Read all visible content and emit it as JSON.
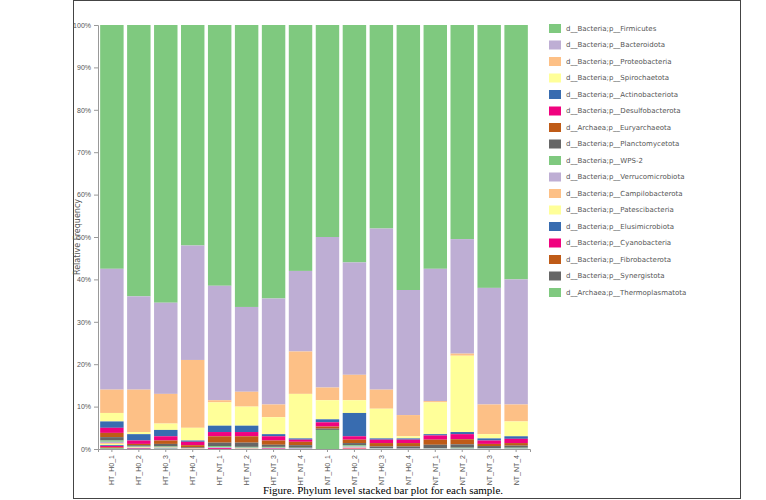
{
  "chart_data": {
    "type": "bar",
    "stacked": true,
    "legend": "right",
    "grid": false,
    "title": "Figure. Phylum level stacked bar plot for each sample.",
    "y_label": "Relative Frequency",
    "categories": [
      "HT_H0_1",
      "HT_H0_2",
      "HT_H0_3",
      "HT_H0_4",
      "HT_NT_1",
      "HT_NT_2",
      "HT_NT_3",
      "HT_NT_4",
      "NT_H0_1",
      "NT_H0_2",
      "NT_H0_3",
      "NT_H0_4",
      "NT_NT_1",
      "NT_NT_2",
      "NT_NT_3",
      "NT_NT_4"
    ],
    "ylim": [
      0,
      100
    ],
    "yticks": [
      {
        "value": 0,
        "label": "0%"
      },
      {
        "value": 10,
        "label": "10%"
      },
      {
        "value": 20,
        "label": "20%"
      },
      {
        "value": 30,
        "label": "30%"
      },
      {
        "value": 40,
        "label": "40%"
      },
      {
        "value": 50,
        "label": "50%"
      },
      {
        "value": 60,
        "label": "60%"
      },
      {
        "value": 70,
        "label": "70%"
      },
      {
        "value": 80,
        "label": "80%"
      },
      {
        "value": 90,
        "label": "90%"
      },
      {
        "value": 100,
        "label": "100%"
      }
    ],
    "series": [
      {
        "name": "d__Bacteria;p__Firmicutes",
        "color": "#7fc97f",
        "values": [
          57.5,
          64,
          65.5,
          52,
          61.5,
          66.5,
          64.5,
          58,
          50,
          56,
          48,
          62.5,
          57.5,
          50.5,
          62,
          60
        ]
      },
      {
        "name": "d__Bacteria;p__Bacteroidota",
        "color": "#beaed4",
        "values": [
          28.5,
          22,
          21.5,
          27,
          27,
          20,
          25,
          19,
          35.5,
          26.5,
          38,
          29.5,
          31.2,
          27,
          27.5,
          29.5
        ]
      },
      {
        "name": "d__Bacteria;p__Proteobacteria",
        "color": "#fdc086",
        "values": [
          5.5,
          10,
          7,
          16,
          0.5,
          3.5,
          3,
          10,
          3,
          6,
          4.5,
          5,
          0.3,
          0.5,
          7,
          4
        ]
      },
      {
        "name": "d__Bacteria;p__Spirochaetota",
        "color": "#ffff99",
        "values": [
          2,
          0.5,
          1.5,
          3,
          5.5,
          4.5,
          4,
          10.5,
          4.5,
          3,
          7,
          0.5,
          7.5,
          18,
          1,
          3.5
        ]
      },
      {
        "name": "d__Bacteria;p__Actinobacteriota",
        "color": "#386cb0",
        "values": [
          1.5,
          1.5,
          1.5,
          0.3,
          1.5,
          1.5,
          0.5,
          0.3,
          0.7,
          5.5,
          0.3,
          0.3,
          0.3,
          0.5,
          0.5,
          0.6
        ]
      },
      {
        "name": "d__Bacteria;p__Desulfobacterota",
        "color": "#f0027f",
        "values": [
          1.2,
          0.8,
          1.0,
          0.8,
          1.0,
          1.0,
          1.0,
          0.5,
          1.0,
          0.8,
          0.8,
          0.8,
          1.0,
          1.2,
          0.8,
          1.0
        ]
      },
      {
        "name": "d__Archaea;p__Euryarchaeota",
        "color": "#bf5b17",
        "values": [
          1.0,
          0.3,
          0.8,
          0.5,
          1.5,
          1.5,
          1.0,
          0.8,
          0.5,
          0.8,
          0.8,
          0.8,
          1.2,
          1.2,
          0.5,
          0.6
        ]
      },
      {
        "name": "d__Bacteria;p__Planctomycetota",
        "color": "#666666",
        "values": [
          0.8,
          0.3,
          0.6,
          0.2,
          0.8,
          1.0,
          0.5,
          0.6,
          0.3,
          0.5,
          0.4,
          0.5,
          0.8,
          0.8,
          0.5,
          0.5
        ]
      },
      {
        "name": "d__Bacteria;p__WPS-2",
        "color": "#7fc97f",
        "values": [
          0.3,
          0.1,
          0.2,
          0,
          0.3,
          0.2,
          0.2,
          0.1,
          4.5,
          0.3,
          0.1,
          0,
          0.1,
          0.2,
          0.1,
          0.2
        ]
      },
      {
        "name": "d__Bacteria;p__Verrucomicrobiota",
        "color": "#beaed4",
        "values": [
          0.3,
          0.1,
          0.1,
          0.1,
          0.2,
          0.2,
          0.2,
          0.2,
          0,
          0.3,
          0.1,
          0.1,
          0.1,
          0.1,
          0.1,
          0.1
        ]
      },
      {
        "name": "d__Bacteria;p__Campilobacterota",
        "color": "#fdc086",
        "values": [
          0.2,
          0.1,
          0.1,
          0.1,
          0,
          0.1,
          0,
          0,
          0,
          0.2,
          0,
          0,
          0,
          0,
          0,
          0
        ]
      },
      {
        "name": "d__Bacteria;p__Patescibacteria",
        "color": "#ffff99",
        "values": [
          0.3,
          0.1,
          0.1,
          0,
          0,
          0,
          0,
          0,
          0,
          0,
          0,
          0,
          0,
          0,
          0,
          0
        ]
      },
      {
        "name": "d__Bacteria;p__Elusimicrobiota",
        "color": "#386cb0",
        "values": [
          0.2,
          0.1,
          0.1,
          0,
          0,
          0,
          0,
          0,
          0,
          0,
          0,
          0,
          0,
          0,
          0,
          0
        ]
      },
      {
        "name": "d__Bacteria;p__Cyanobacteria",
        "color": "#f0027f",
        "values": [
          0.3,
          0.1,
          0,
          0,
          0.2,
          0,
          0.1,
          0,
          0,
          0.1,
          0,
          0,
          0,
          0,
          0,
          0
        ]
      },
      {
        "name": "d__Bacteria;p__Fibrobacterota",
        "color": "#bf5b17",
        "values": [
          0.2,
          0,
          0,
          0,
          0,
          0,
          0,
          0,
          0,
          0,
          0,
          0,
          0,
          0,
          0,
          0
        ]
      },
      {
        "name": "d__Bacteria;p__Synergistota",
        "color": "#666666",
        "values": [
          0.1,
          0,
          0,
          0,
          0,
          0,
          0,
          0,
          0,
          0,
          0,
          0,
          0,
          0,
          0,
          0
        ]
      },
      {
        "name": "d__Archaea;p__Thermoplasmatota",
        "color": "#7fc97f",
        "values": [
          0.1,
          0,
          0,
          0,
          0,
          0,
          0,
          0,
          0,
          0,
          0,
          0,
          0,
          0,
          0,
          0
        ]
      }
    ]
  }
}
